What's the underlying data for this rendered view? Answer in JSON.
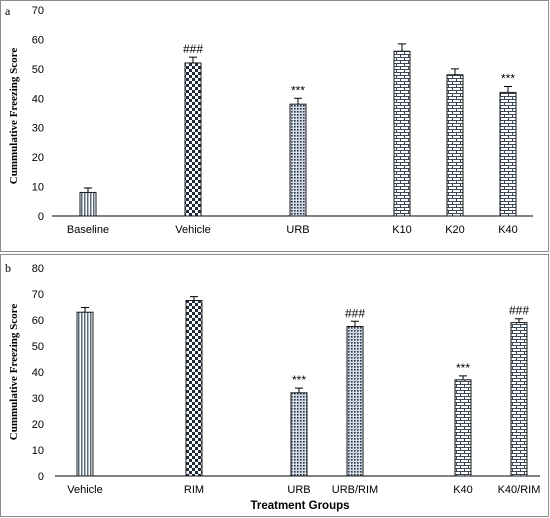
{
  "chart_data": [
    {
      "type": "bar",
      "panel_label": "a",
      "title": "",
      "xlabel": "",
      "ylabel": "Cummulative Freezing Score",
      "ylim": [
        0,
        70
      ],
      "yticks": [
        "0",
        "10",
        "20",
        "30",
        "40",
        "50",
        "60",
        "70"
      ],
      "grid": false,
      "categories": [
        "Baseline",
        "Vehicle",
        "URB",
        "K10",
        "K20",
        "K40"
      ],
      "values": [
        8,
        52,
        38,
        56,
        48,
        42
      ],
      "errors": [
        1.5,
        2,
        2,
        2.5,
        2,
        2
      ],
      "annotations": [
        "",
        "###",
        "***",
        "",
        "",
        "***"
      ],
      "patterns": [
        "vstripes",
        "checker",
        "dots",
        "brick",
        "brick",
        "brick"
      ]
    },
    {
      "type": "bar",
      "panel_label": "b",
      "title": "",
      "xlabel": "Treatment Groups",
      "ylabel": "Cummulative Freezing Score",
      "ylim": [
        0,
        80
      ],
      "yticks": [
        "0",
        "10",
        "20",
        "30",
        "40",
        "50",
        "60",
        "70",
        "80"
      ],
      "grid": false,
      "categories": [
        "Vehicle",
        "RIM",
        "URB",
        "URB/RIM",
        "K40",
        "K40/RIM"
      ],
      "values": [
        63,
        67.5,
        32,
        57.5,
        37,
        59
      ],
      "errors": [
        1.8,
        1.5,
        1.8,
        2,
        1.5,
        1.5
      ],
      "annotations": [
        "",
        "",
        "***",
        "###",
        "***",
        "###"
      ],
      "patterns": [
        "vstripes",
        "checker",
        "dots",
        "dots",
        "brick",
        "brick"
      ]
    }
  ]
}
